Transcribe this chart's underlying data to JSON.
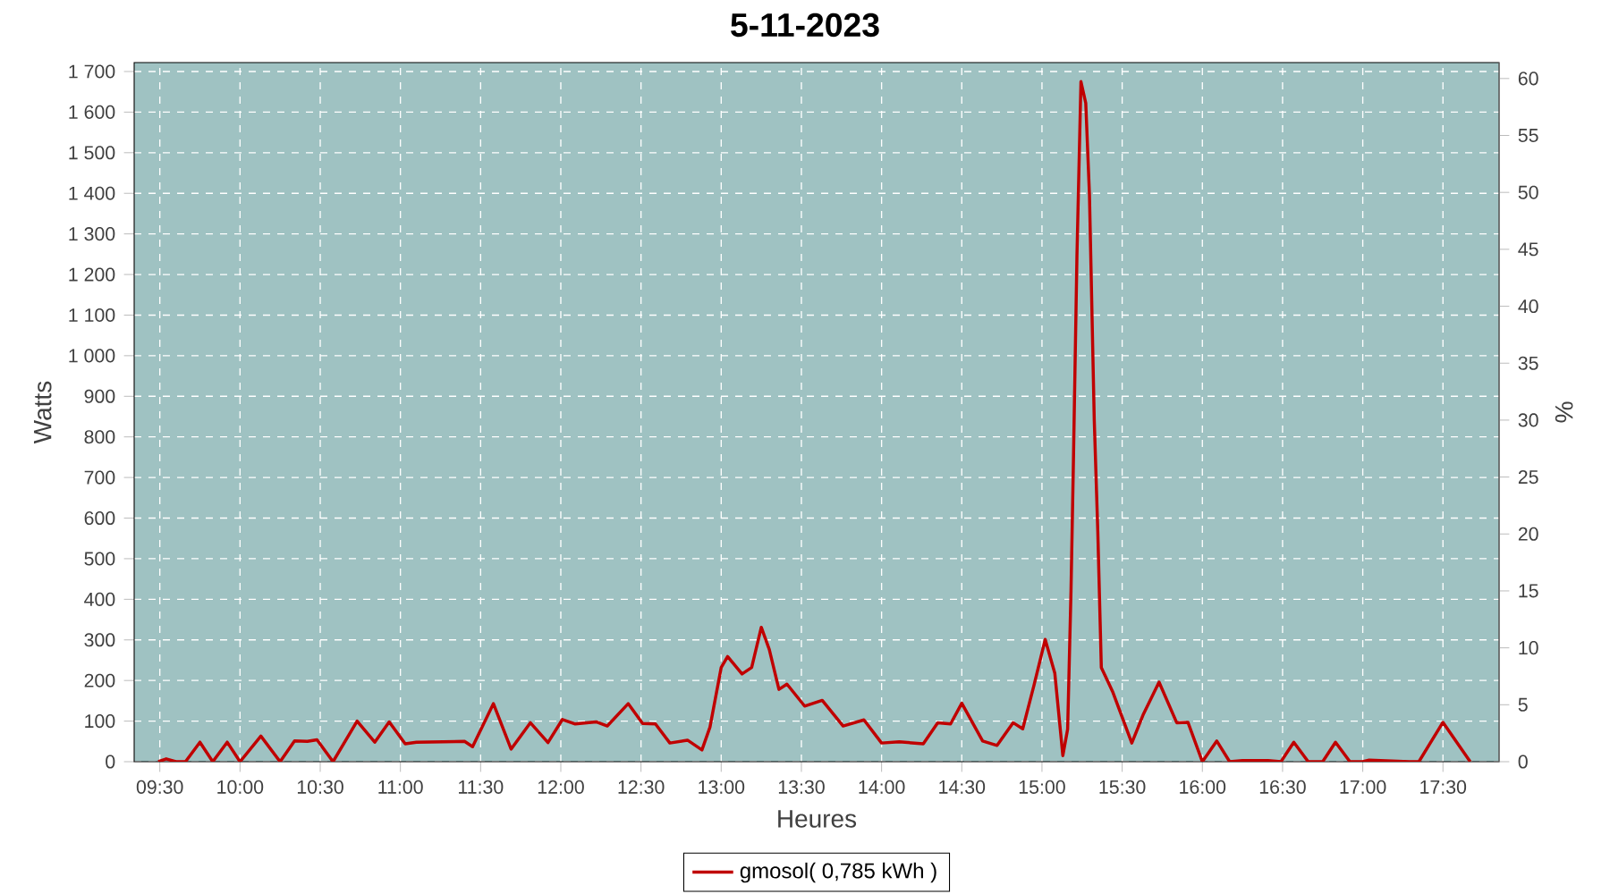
{
  "chart_data": {
    "type": "line",
    "title": "5-11-2023",
    "xlabel": "Heures",
    "ylabel": "Watts",
    "y2label": "%",
    "xlim": [
      9.34,
      17.85
    ],
    "xticks": [
      {
        "value": 9.5,
        "label": "09:30"
      },
      {
        "value": 10,
        "label": "10:00"
      },
      {
        "value": 10.5,
        "label": "10:30"
      },
      {
        "value": 11,
        "label": "11:00"
      },
      {
        "value": 11.5,
        "label": "11:30"
      },
      {
        "value": 12,
        "label": "12:00"
      },
      {
        "value": 12.5,
        "label": "12:30"
      },
      {
        "value": 13,
        "label": "13:00"
      },
      {
        "value": 13.5,
        "label": "13:30"
      },
      {
        "value": 14,
        "label": "14:00"
      },
      {
        "value": 14.5,
        "label": "14:30"
      },
      {
        "value": 15,
        "label": "15:00"
      },
      {
        "value": 15.5,
        "label": "15:30"
      },
      {
        "value": 16,
        "label": "16:00"
      },
      {
        "value": 16.5,
        "label": "16:30"
      },
      {
        "value": 17,
        "label": "17:00"
      },
      {
        "value": 17.5,
        "label": "17:30"
      }
    ],
    "ylim": [
      0,
      1722
    ],
    "yticks": [
      0,
      100,
      200,
      300,
      400,
      500,
      600,
      700,
      800,
      900,
      {
        "value": 1000,
        "label": "1 000"
      },
      {
        "value": 1100,
        "label": "1 100"
      },
      {
        "value": 1200,
        "label": "1 200"
      },
      {
        "value": 1300,
        "label": "1 300"
      },
      {
        "value": 1400,
        "label": "1 400"
      },
      {
        "value": 1500,
        "label": "1 500"
      },
      {
        "value": 1600,
        "label": "1 600"
      },
      {
        "value": 1700,
        "label": "1 700"
      }
    ],
    "y2lim": [
      0,
      61.4
    ],
    "y2ticks": [
      0,
      5,
      10,
      15,
      20,
      25,
      30,
      35,
      40,
      45,
      50,
      55,
      60
    ],
    "grid": true,
    "legend": "bottom",
    "line_style": "solid",
    "series": [
      {
        "name": "gmosol( 0,785 kWh )",
        "color": "#c00000",
        "x": [
          9.49,
          9.54,
          9.6,
          9.66,
          9.75,
          9.83,
          9.92,
          10.0,
          10.13,
          10.25,
          10.34,
          10.42,
          10.48,
          10.58,
          10.73,
          10.84,
          10.93,
          11.03,
          11.1,
          11.4,
          11.45,
          11.58,
          11.69,
          11.81,
          11.92,
          12.01,
          12.09,
          12.22,
          12.29,
          12.42,
          12.51,
          12.59,
          12.68,
          12.79,
          12.88,
          12.93,
          13.0,
          13.04,
          13.13,
          13.19,
          13.25,
          13.3,
          13.36,
          13.41,
          13.52,
          13.63,
          13.76,
          13.89,
          14.0,
          14.11,
          14.26,
          14.35,
          14.43,
          14.5,
          14.63,
          14.72,
          14.82,
          14.88,
          14.95,
          15.02,
          15.08,
          15.13,
          15.16,
          15.181,
          15.195,
          15.218,
          15.243,
          15.273,
          15.296,
          15.326,
          15.348,
          15.37,
          15.44,
          15.56,
          15.63,
          15.73,
          15.84,
          15.91,
          16.0,
          16.09,
          16.17,
          16.25,
          16.41,
          16.49,
          16.57,
          16.66,
          16.75,
          16.83,
          16.92,
          17.0,
          17.04,
          17.29,
          17.35,
          17.5,
          17.61,
          17.67
        ],
        "values": [
          0,
          7,
          0,
          0,
          48,
          0,
          48,
          0,
          63,
          0,
          51,
          50,
          54,
          0,
          100,
          48,
          98,
          44,
          48,
          50,
          37,
          143,
          31,
          96,
          47,
          104,
          93,
          98,
          88,
          143,
          94,
          93,
          46,
          53,
          29,
          85,
          232,
          259,
          216,
          232,
          331,
          276,
          178,
          191,
          137,
          151,
          88,
          103,
          46,
          49,
          44,
          96,
          93,
          144,
          51,
          40,
          96,
          81,
          188,
          301,
          218,
          15,
          80,
          421,
          717,
          1246,
          1675,
          1622,
          1397,
          841,
          567,
          232,
          173,
          46,
          115,
          196,
          96,
          97,
          0,
          51,
          0,
          3,
          3,
          0,
          48,
          0,
          0,
          48,
          0,
          0,
          4,
          0,
          0,
          97,
          34,
          0
        ]
      }
    ]
  }
}
